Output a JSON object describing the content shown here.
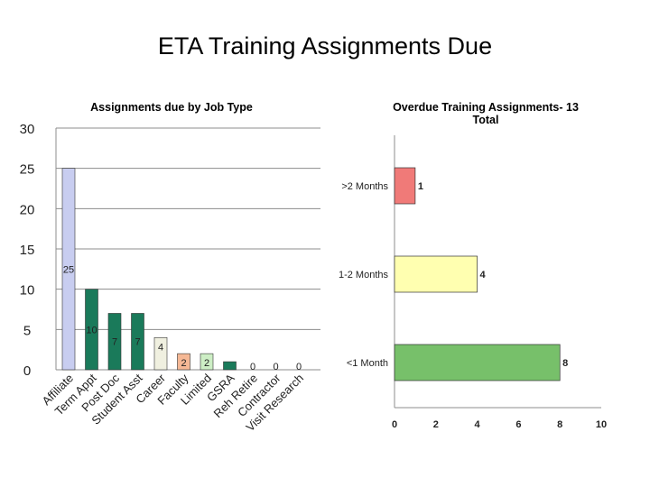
{
  "slide": {
    "title": "ETA Training Assignments Due"
  },
  "chart_data": [
    {
      "type": "bar",
      "orientation": "vertical",
      "title": "Assignments due by Job Type",
      "categories": [
        "Affiliate",
        "Term Appt",
        "Post Doc",
        "Student Asst",
        "Career",
        "Faculty",
        "Limited",
        "GSRA",
        "Reh Retire",
        "Contractor",
        "Visit Research"
      ],
      "values": [
        25,
        10,
        7,
        7,
        4,
        2,
        2,
        1,
        0,
        0,
        0
      ],
      "data_labels": [
        "25",
        "10",
        "7",
        "7",
        "4",
        "2",
        "2",
        "",
        "0",
        "0",
        "0"
      ],
      "bar_colors": [
        "#c8cdf0",
        "#1a7a5a",
        "#1a7a5a",
        "#1a7a5a",
        "#f0f0e0",
        "#f5b895",
        "#cdeec5",
        "#1a7a5a",
        "#1a7a5a",
        "#1a7a5a",
        "#1a7a5a"
      ],
      "ylim": [
        0,
        30
      ],
      "yticks": [
        "0",
        "5",
        "10",
        "15",
        "20",
        "25",
        "30"
      ],
      "grid": true,
      "legend": "none"
    },
    {
      "type": "bar",
      "orientation": "horizontal",
      "title": "Overdue Training Assignments- 13 Total",
      "categories": [
        "<1 Month",
        "1-2 Months",
        ">2 Months"
      ],
      "values": [
        8,
        4,
        1
      ],
      "data_labels": [
        "8",
        "4",
        "1"
      ],
      "bar_colors": [
        "#77c06a",
        "#ffffb0",
        "#f07a78"
      ],
      "xlim": [
        0,
        10
      ],
      "xticks": [
        "0",
        "2",
        "4",
        "6",
        "8",
        "10"
      ],
      "grid": false,
      "legend": "none"
    }
  ]
}
